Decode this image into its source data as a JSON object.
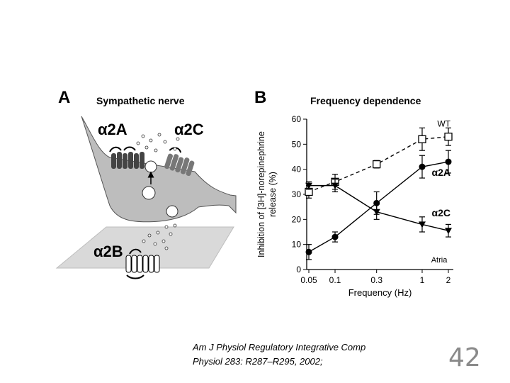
{
  "panel_a": {
    "letter": "A",
    "title": "Sympathetic nerve",
    "labels": {
      "alpha2a": "α2A",
      "alpha2c": "α2C",
      "alpha2b": "α2B"
    }
  },
  "panel_b": {
    "letter": "B",
    "title": "Frequency dependence"
  },
  "chart_data": {
    "type": "line",
    "title": "Frequency dependence",
    "xlabel": "Frequency (Hz)",
    "ylabel_line1": "Inhibition of [3H]-norepinephrine",
    "ylabel_line2": "release (%)",
    "x_scale": "log",
    "categories": [
      "0.05",
      "0.1",
      "0.3",
      "1",
      "2"
    ],
    "x": [
      0.05,
      0.1,
      0.3,
      1,
      2
    ],
    "ylim": [
      0,
      60
    ],
    "yticks": [
      "0",
      "10",
      "20",
      "30",
      "40",
      "50",
      "60"
    ],
    "annotation": "Atria",
    "series": [
      {
        "name": "WT",
        "marker": "square-open",
        "dashed": true,
        "values": [
          31,
          35,
          42,
          52,
          53
        ],
        "errors": [
          2.5,
          3,
          1.5,
          4.5,
          3.5
        ]
      },
      {
        "name": "α2A",
        "marker": "circle-filled",
        "dashed": false,
        "values": [
          7,
          13,
          26.5,
          41,
          43
        ],
        "errors": [
          3,
          2,
          4.5,
          4.5,
          4.5
        ]
      },
      {
        "name": "α2C",
        "marker": "triangle-down-filled",
        "dashed": false,
        "values": [
          33.5,
          33.5,
          23,
          18,
          15.5
        ],
        "errors": [
          1.5,
          2.5,
          3,
          3,
          2.5
        ]
      }
    ]
  },
  "citation": {
    "line1": "Am J Physiol Regulatory Integrative Comp",
    "line2": "Physiol 283: R287–R295, 2002;"
  },
  "slide_number": "42"
}
